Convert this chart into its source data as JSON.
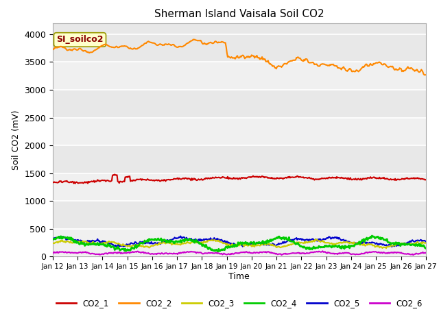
{
  "title": "Sherman Island Vaisala Soil CO2",
  "ylabel": "Soil CO2 (mV)",
  "xlabel": "Time",
  "annotation": "SI_soilco2",
  "annotation_color": "#8B0000",
  "annotation_bg": "#FFFFCC",
  "annotation_edge": "#999900",
  "x_start": 12,
  "x_end": 27,
  "x_ticks": [
    12,
    13,
    14,
    15,
    16,
    17,
    18,
    19,
    20,
    21,
    22,
    23,
    24,
    25,
    26,
    27
  ],
  "x_tick_labels": [
    "Jan 12",
    "Jan 13",
    "Jan 14",
    "Jan 15",
    "Jan 16",
    "Jan 17",
    "Jan 18",
    "Jan 19",
    "Jan 20",
    "Jan 21",
    "Jan 22",
    "Jan 23",
    "Jan 24",
    "Jan 25",
    "Jan 26",
    "Jan 27"
  ],
  "ylim": [
    0,
    4200
  ],
  "y_ticks": [
    0,
    500,
    1000,
    1500,
    2000,
    2500,
    3000,
    3500,
    4000
  ],
  "series_colors": {
    "CO2_1": "#cc0000",
    "CO2_2": "#ff8800",
    "CO2_3": "#cccc00",
    "CO2_4": "#00cc00",
    "CO2_5": "#0000cc",
    "CO2_6": "#cc00cc"
  },
  "bg_color": "#e8e8e8",
  "bg_band_color": "#d8d8d8",
  "fig_bg": "#ffffff",
  "legend_labels": [
    "CO2_1",
    "CO2_2",
    "CO2_3",
    "CO2_4",
    "CO2_5",
    "CO2_6"
  ]
}
